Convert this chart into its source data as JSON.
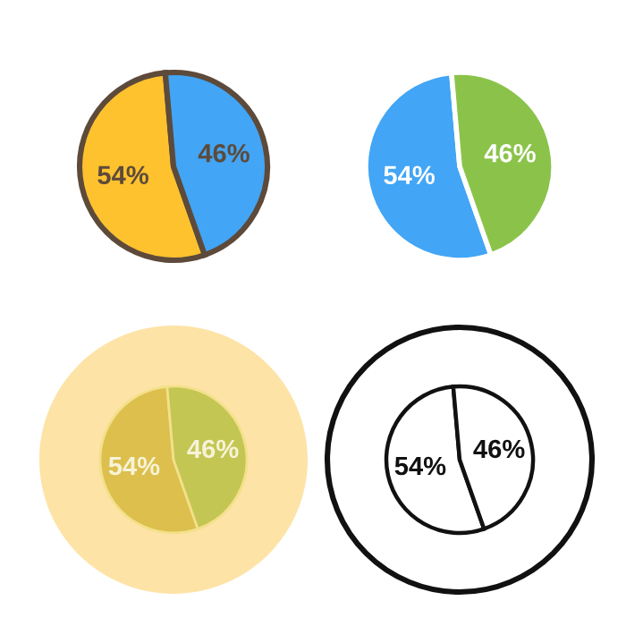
{
  "chart_data": [
    {
      "type": "pie",
      "categories": [
        null,
        null
      ],
      "values": [
        54,
        46
      ],
      "colors": [
        "#fec22e",
        "#42a5f5"
      ],
      "value_labels": [
        "54%",
        "46%"
      ]
    },
    {
      "type": "pie",
      "categories": [
        null,
        null
      ],
      "values": [
        54,
        46
      ],
      "colors": [
        "#42a5f5",
        "#8bc34a"
      ],
      "value_labels": [
        "54%",
        "46%"
      ]
    },
    {
      "type": "pie",
      "categories": [
        null,
        null
      ],
      "values": [
        54,
        46
      ],
      "colors": [
        "#dcbf4c",
        "#c4c654"
      ],
      "value_labels": [
        "54%",
        "46%"
      ]
    },
    {
      "type": "pie",
      "categories": [
        null,
        null
      ],
      "values": [
        54,
        46
      ],
      "colors": [
        "#ffffff",
        "#ffffff"
      ],
      "value_labels": [
        "54%",
        "46%"
      ]
    }
  ]
}
